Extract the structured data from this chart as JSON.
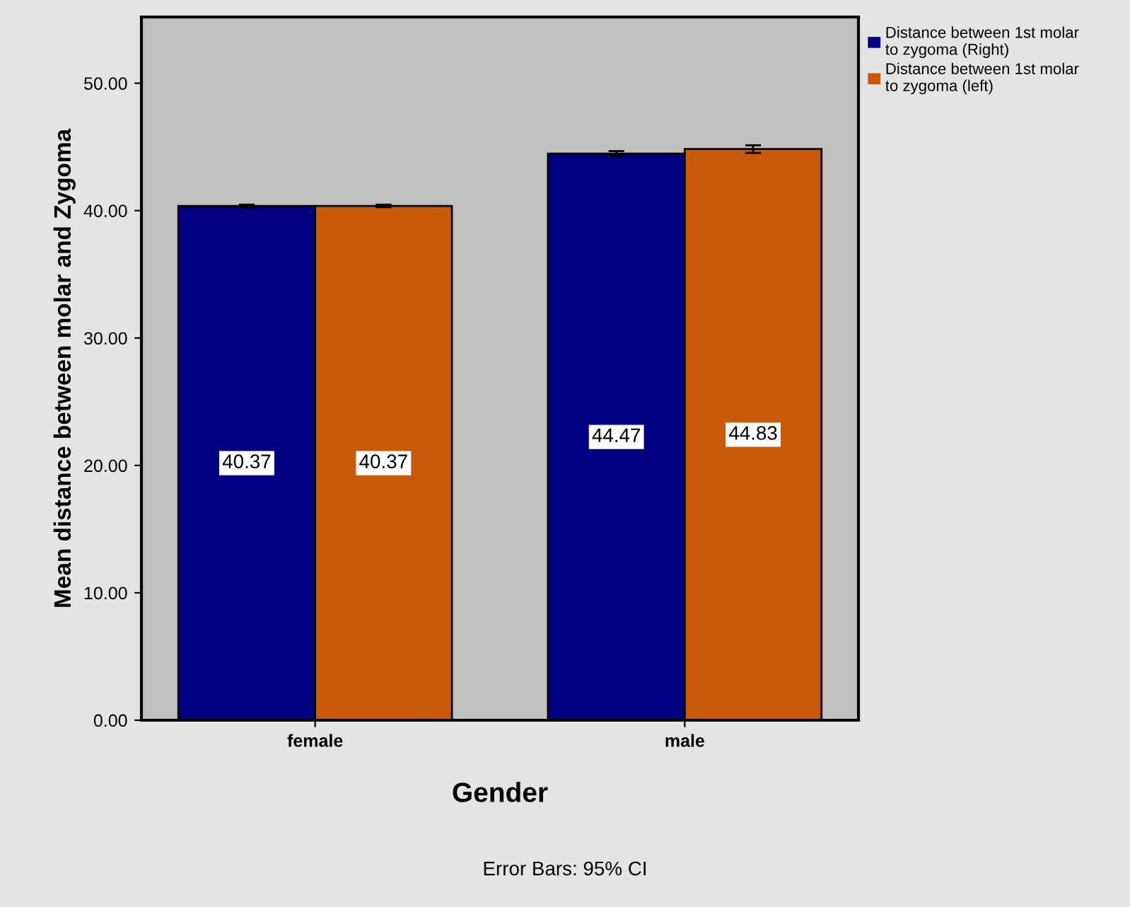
{
  "chart_data": {
    "type": "bar",
    "xlabel": "Gender",
    "ylabel": "Mean distance between molar and Zygoma",
    "categories": [
      "female",
      "male"
    ],
    "series": [
      {
        "name": "Distance between 1st molar\nto zygoma (Right)",
        "color": "#000080",
        "values": [
          40.37,
          44.47
        ],
        "errors": [
          0.1,
          0.2
        ]
      },
      {
        "name": "Distance between 1st molar\nto zygoma (left)",
        "color": "#c85a0a",
        "values": [
          40.37,
          44.83
        ],
        "errors": [
          0.1,
          0.3
        ]
      }
    ],
    "ylim": [
      0,
      55.2
    ],
    "yticks": [
      {
        "value": 0,
        "label": "0.00"
      },
      {
        "value": 10,
        "label": "10.00"
      },
      {
        "value": 20,
        "label": "20.00"
      },
      {
        "value": 30,
        "label": "30.00"
      },
      {
        "value": 40,
        "label": "40.00"
      },
      {
        "value": 50,
        "label": "50.00"
      }
    ],
    "data_labels": true,
    "legend": "top right",
    "grid": false,
    "annotations": [
      "Error Bars: 95% CI"
    ]
  }
}
